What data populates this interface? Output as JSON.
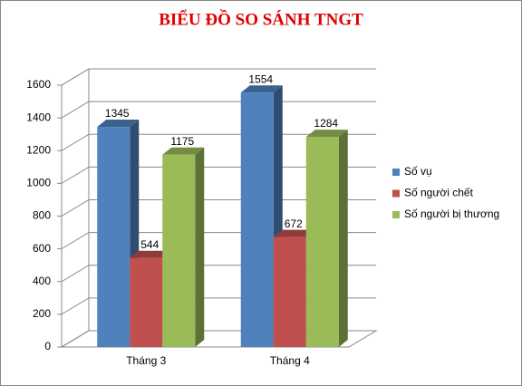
{
  "chart_data": {
    "type": "bar3d",
    "title": "BIỂU ĐỒ SO SÁNH TNGT",
    "categories": [
      "Tháng 3",
      "Tháng 4"
    ],
    "series": [
      {
        "name": "Số vụ",
        "color": "#4f81bd",
        "values": [
          1345,
          1554
        ]
      },
      {
        "name": "Số người chết",
        "color": "#c0504d",
        "values": [
          544,
          672
        ]
      },
      {
        "name": "Số người bị thương",
        "color": "#9bbb59",
        "values": [
          1175,
          1284
        ]
      }
    ],
    "ylim": [
      0,
      1600
    ],
    "yticks": [
      0,
      200,
      400,
      600,
      800,
      1000,
      1200,
      1400,
      1600
    ],
    "grid": true
  }
}
